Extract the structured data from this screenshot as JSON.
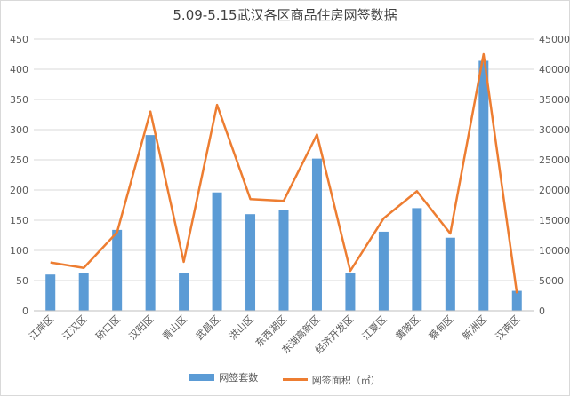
{
  "chart_data": {
    "type": "bar",
    "title": "5.09-5.15武汉各区商品住房网签数据",
    "categories": [
      "江岸区",
      "江汉区",
      "硚口区",
      "汉阳区",
      "青山区",
      "武昌区",
      "洪山区",
      "东西湖区",
      "东湖高新区",
      "经济开发区",
      "江夏区",
      "黄陂区",
      "蔡甸区",
      "新洲区",
      "汉南区"
    ],
    "series": [
      {
        "name": "网签套数",
        "type": "bar",
        "axis": "left",
        "color": "#5b9bd5",
        "values": [
          60,
          63,
          134,
          291,
          62,
          196,
          160,
          167,
          252,
          63,
          131,
          170,
          121,
          414,
          33
        ]
      },
      {
        "name": "网签面积（㎡）",
        "type": "line",
        "axis": "right",
        "color": "#ed7d31",
        "values": [
          8000,
          7100,
          13000,
          33000,
          8100,
          34100,
          18500,
          18200,
          29200,
          6600,
          15300,
          19800,
          12800,
          42500,
          2900
        ]
      }
    ],
    "y_left": {
      "min": 0,
      "max": 450,
      "step": 50
    },
    "y_right": {
      "min": 0,
      "max": 45000,
      "step": 5000
    },
    "grid": true,
    "legend_position": "bottom"
  }
}
